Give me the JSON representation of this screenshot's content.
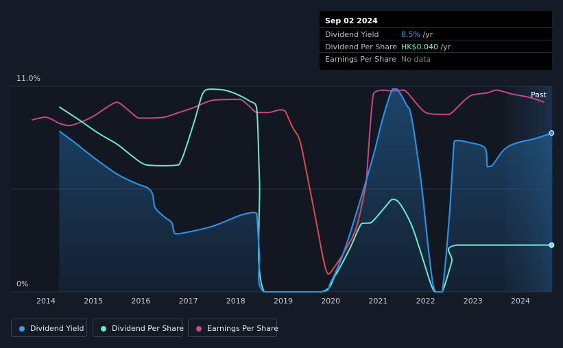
{
  "tooltip": {
    "date": "Sep 02 2024",
    "rows": [
      {
        "label": "Dividend Yield",
        "value": "8.5%",
        "unit": " /yr",
        "color": "#3a9ee8"
      },
      {
        "label": "Dividend Per Share",
        "value": "HK$0.040",
        "unit": " /yr",
        "color": "#7ff2d6"
      },
      {
        "label": "Earnings Per Share",
        "value": "No data",
        "unit": "",
        "color": "#7d828c"
      }
    ]
  },
  "legend": [
    {
      "label": "Dividend Yield",
      "color": "#3a9ee8"
    },
    {
      "label": "Dividend Per Share",
      "color": "#6ee7cf"
    },
    {
      "label": "Earnings Per Share",
      "color": "#d0488a"
    }
  ],
  "colors": {
    "background": "#151b26",
    "dividend_yield": "#2d8fe0",
    "dividend_per_share": "#6ee7cf",
    "earnings_per_share": "#c8468a",
    "eps_decline": "#e04a4a",
    "grid": "#2b3240",
    "axis_text": "#c7cbd2"
  },
  "chart_data": {
    "type": "line",
    "y_top_label": "11.0%",
    "y_bottom_label": "0%",
    "past_label": "Past",
    "ylim": [
      0,
      11
    ],
    "xlim": [
      2013.7,
      2024.67
    ],
    "x_ticks": [
      2014,
      2015,
      2016,
      2017,
      2018,
      2019,
      2020,
      2021,
      2022,
      2023,
      2024
    ],
    "forecast_region_start": 2023.67,
    "series": [
      {
        "name": "Dividend Yield",
        "unit": "%",
        "points": [
          [
            2014.28,
            8.6
          ],
          [
            2014.6,
            8.0
          ],
          [
            2015.0,
            7.2
          ],
          [
            2015.5,
            6.3
          ],
          [
            2015.9,
            5.8
          ],
          [
            2016.15,
            5.55
          ],
          [
            2016.25,
            5.2
          ],
          [
            2016.3,
            4.5
          ],
          [
            2016.5,
            4.0
          ],
          [
            2016.65,
            3.7
          ],
          [
            2016.73,
            3.1
          ],
          [
            2017.0,
            3.2
          ],
          [
            2017.5,
            3.5
          ],
          [
            2017.9,
            3.9
          ],
          [
            2018.1,
            4.1
          ],
          [
            2018.35,
            4.25
          ],
          [
            2018.44,
            4.2
          ],
          [
            2018.5,
            2.0
          ],
          [
            2018.6,
            0.0
          ],
          [
            2019.8,
            0.0
          ],
          [
            2020.0,
            0.5
          ],
          [
            2020.3,
            2.3
          ],
          [
            2020.6,
            4.7
          ],
          [
            2020.9,
            7.3
          ],
          [
            2021.1,
            9.3
          ],
          [
            2021.3,
            10.85
          ],
          [
            2021.4,
            10.85
          ],
          [
            2021.6,
            10.0
          ],
          [
            2021.7,
            9.4
          ],
          [
            2021.9,
            6.0
          ],
          [
            2022.05,
            2.5
          ],
          [
            2022.15,
            0.5
          ],
          [
            2022.22,
            0.0
          ],
          [
            2022.35,
            0.0
          ],
          [
            2022.5,
            4.0
          ],
          [
            2022.6,
            8.0
          ],
          [
            2022.65,
            8.1
          ],
          [
            2022.9,
            8.0
          ],
          [
            2023.25,
            7.7
          ],
          [
            2023.3,
            6.7
          ],
          [
            2023.4,
            6.75
          ],
          [
            2023.65,
            7.6
          ],
          [
            2023.9,
            7.95
          ],
          [
            2024.3,
            8.2
          ],
          [
            2024.67,
            8.5
          ]
        ]
      },
      {
        "name": "Dividend Per Share",
        "unit": "HK$",
        "points": [
          [
            2014.28,
            9.9
          ],
          [
            2014.7,
            9.2
          ],
          [
            2015.1,
            8.5
          ],
          [
            2015.5,
            7.9
          ],
          [
            2015.8,
            7.3
          ],
          [
            2016.1,
            6.8
          ],
          [
            2016.5,
            6.75
          ],
          [
            2016.8,
            6.8
          ],
          [
            2017.1,
            8.9
          ],
          [
            2017.3,
            10.6
          ],
          [
            2017.45,
            10.85
          ],
          [
            2017.75,
            10.8
          ],
          [
            2018.0,
            10.6
          ],
          [
            2018.3,
            10.2
          ],
          [
            2018.44,
            9.85
          ],
          [
            2018.5,
            6.0
          ],
          [
            2018.6,
            0.0
          ],
          [
            2019.8,
            0.0
          ],
          [
            2020.1,
            0.9
          ],
          [
            2020.4,
            2.3
          ],
          [
            2020.65,
            3.65
          ],
          [
            2020.85,
            3.7
          ],
          [
            2021.15,
            4.55
          ],
          [
            2021.3,
            4.95
          ],
          [
            2021.45,
            4.75
          ],
          [
            2021.7,
            3.6
          ],
          [
            2021.9,
            2.1
          ],
          [
            2022.1,
            0.5
          ],
          [
            2022.2,
            0.0
          ],
          [
            2022.35,
            0.0
          ],
          [
            2022.55,
            1.6
          ],
          [
            2022.65,
            2.5
          ],
          [
            2024.67,
            2.5
          ]
        ]
      },
      {
        "name": "Earnings Per Share",
        "unit": "HK$",
        "points": [
          [
            2013.7,
            9.2
          ],
          [
            2014.0,
            9.35
          ],
          [
            2014.3,
            9.0
          ],
          [
            2014.5,
            8.9
          ],
          [
            2014.75,
            9.1
          ],
          [
            2015.0,
            9.4
          ],
          [
            2015.3,
            9.9
          ],
          [
            2015.5,
            10.15
          ],
          [
            2015.7,
            9.8
          ],
          [
            2015.95,
            9.3
          ],
          [
            2016.2,
            9.3
          ],
          [
            2016.5,
            9.35
          ],
          [
            2016.8,
            9.6
          ],
          [
            2017.1,
            9.85
          ],
          [
            2017.5,
            10.25
          ],
          [
            2017.9,
            10.3
          ],
          [
            2018.1,
            10.3
          ],
          [
            2018.3,
            9.9
          ],
          [
            2018.44,
            9.6
          ],
          [
            2018.7,
            9.6
          ],
          [
            2018.95,
            9.75
          ],
          [
            2019.05,
            9.65
          ],
          [
            2019.2,
            8.8
          ],
          [
            2019.35,
            8.1
          ],
          [
            2019.5,
            6.3
          ],
          [
            2019.7,
            3.7
          ],
          [
            2019.85,
            1.7
          ],
          [
            2019.95,
            0.95
          ],
          [
            2020.1,
            1.4
          ],
          [
            2020.3,
            2.2
          ],
          [
            2020.55,
            3.5
          ],
          [
            2020.75,
            5.8
          ],
          [
            2020.9,
            10.6
          ],
          [
            2021.1,
            10.8
          ],
          [
            2021.3,
            10.75
          ],
          [
            2021.55,
            10.8
          ],
          [
            2021.8,
            10.1
          ],
          [
            2022.0,
            9.6
          ],
          [
            2022.25,
            9.5
          ],
          [
            2022.5,
            9.5
          ],
          [
            2022.7,
            9.95
          ],
          [
            2022.95,
            10.5
          ],
          [
            2023.3,
            10.65
          ],
          [
            2023.5,
            10.8
          ],
          [
            2023.8,
            10.6
          ],
          [
            2024.2,
            10.4
          ],
          [
            2024.5,
            10.15
          ]
        ]
      }
    ]
  }
}
